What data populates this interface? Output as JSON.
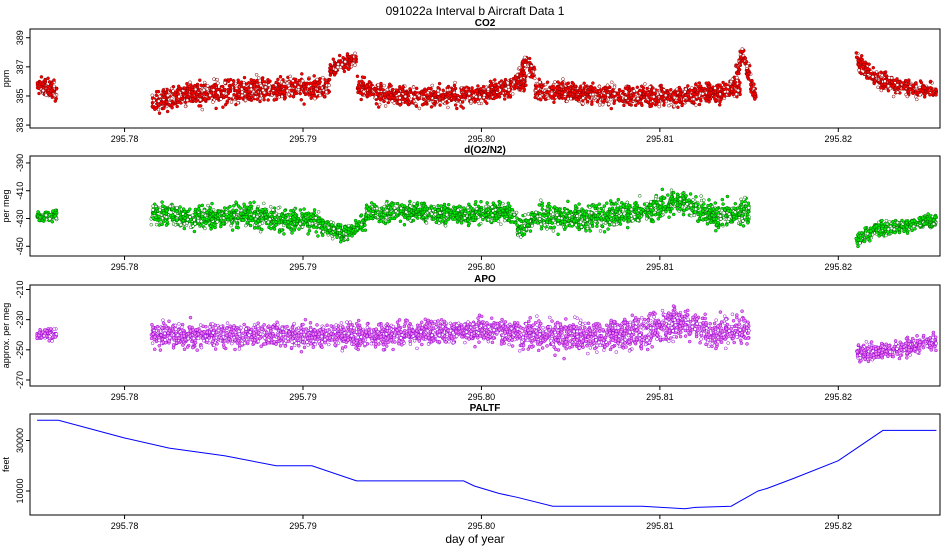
{
  "title": "091022a   Interval b Aircraft Data 1",
  "xlabel": "day of year",
  "chart_data": [
    {
      "type": "scatter",
      "title": "CO2",
      "ylabel": "ppm",
      "xlim": [
        295.7747,
        295.8257
      ],
      "ylim": [
        382.8,
        389.6
      ],
      "xticks": [
        295.78,
        295.79,
        295.8,
        295.81,
        295.82
      ],
      "xtick_labels": [
        "295.78",
        "295.79",
        "295.80",
        "295.81",
        "295.82"
      ],
      "yticks": [
        383,
        385,
        387,
        389
      ],
      "ytick_labels": [
        "383",
        "385",
        "387",
        "389"
      ],
      "color": "#ff0000",
      "edge_color": "#8b0000",
      "segments": [
        {
          "x0": 295.7751,
          "x1": 295.7762,
          "pts": [
            [
              295.7751,
              385.7
            ],
            [
              295.7762,
              385.3
            ]
          ],
          "spread": 0.6
        },
        {
          "x0": 295.7815,
          "x1": 295.7915,
          "pts": [
            [
              295.7815,
              384.6
            ],
            [
              295.783,
              385.0
            ],
            [
              295.785,
              385.3
            ],
            [
              295.788,
              385.4
            ],
            [
              295.79,
              385.6
            ],
            [
              295.7915,
              385.6
            ]
          ],
          "spread": 0.7
        },
        {
          "x0": 295.7915,
          "x1": 295.793,
          "pts": [
            [
              295.7915,
              386.7
            ],
            [
              295.7922,
              387.3
            ],
            [
              295.793,
              387.5
            ]
          ],
          "spread": 0.4
        },
        {
          "x0": 295.793,
          "x1": 295.8025,
          "pts": [
            [
              295.793,
              385.6
            ],
            [
              295.795,
              385.0
            ],
            [
              295.798,
              385.0
            ],
            [
              295.8,
              385.1
            ],
            [
              295.8015,
              385.6
            ],
            [
              295.8025,
              386.0
            ]
          ],
          "spread": 0.6
        },
        {
          "x0": 295.802,
          "x1": 295.803,
          "pts": [
            [
              295.802,
              386.0
            ],
            [
              295.8025,
              387.3
            ],
            [
              295.803,
              386.6
            ]
          ],
          "spread": 0.6
        },
        {
          "x0": 295.803,
          "x1": 295.8145,
          "pts": [
            [
              295.803,
              385.4
            ],
            [
              295.806,
              385.2
            ],
            [
              295.809,
              385.0
            ],
            [
              295.811,
              385.0
            ],
            [
              295.813,
              385.2
            ],
            [
              295.8145,
              385.6
            ]
          ],
          "spread": 0.6
        },
        {
          "x0": 295.8142,
          "x1": 295.8154,
          "pts": [
            [
              295.8142,
              386.0
            ],
            [
              295.8146,
              388.0
            ],
            [
              295.815,
              386.4
            ],
            [
              295.8154,
              385.0
            ]
          ],
          "spread": 0.6
        },
        {
          "x0": 295.821,
          "x1": 295.8255,
          "pts": [
            [
              295.821,
              387.6
            ],
            [
              295.822,
              386.2
            ],
            [
              295.8235,
              385.6
            ],
            [
              295.8255,
              385.3
            ]
          ],
          "spread": 0.5
        }
      ]
    },
    {
      "type": "scatter",
      "title": "d(O2/N2)",
      "ylabel": "per meg",
      "xlim": [
        295.7747,
        295.8257
      ],
      "ylim": [
        -457,
        -385
      ],
      "xticks": [
        295.78,
        295.79,
        295.8,
        295.81,
        295.82
      ],
      "xtick_labels": [
        "295.78",
        "295.79",
        "295.80",
        "295.81",
        "295.82"
      ],
      "yticks": [
        -390,
        -410,
        -430,
        -450
      ],
      "ytick_labels": [
        "-390",
        "-410",
        "-430",
        "-450"
      ],
      "color": "#00ee00",
      "edge_color": "#006400",
      "segments": [
        {
          "x0": 295.7751,
          "x1": 295.7762,
          "pts": [
            [
              295.7751,
              -428
            ],
            [
              295.7762,
              -428
            ]
          ],
          "spread": 3
        },
        {
          "x0": 295.7815,
          "x1": 295.791,
          "pts": [
            [
              295.7815,
              -425
            ],
            [
              295.784,
              -430
            ],
            [
              295.787,
              -428
            ],
            [
              295.79,
              -432
            ],
            [
              295.791,
              -432
            ]
          ],
          "spread": 7
        },
        {
          "x0": 295.791,
          "x1": 295.7935,
          "pts": [
            [
              295.791,
              -436
            ],
            [
              295.7922,
              -441
            ],
            [
              295.7935,
              -432
            ]
          ],
          "spread": 5
        },
        {
          "x0": 295.7935,
          "x1": 295.802,
          "pts": [
            [
              295.7935,
              -426
            ],
            [
              295.796,
              -425
            ],
            [
              295.799,
              -427
            ],
            [
              295.801,
              -425
            ],
            [
              295.802,
              -428
            ]
          ],
          "spread": 6
        },
        {
          "x0": 295.802,
          "x1": 295.803,
          "pts": [
            [
              295.802,
              -440
            ],
            [
              295.803,
              -430
            ]
          ],
          "spread": 6
        },
        {
          "x0": 295.803,
          "x1": 295.815,
          "pts": [
            [
              295.803,
              -428
            ],
            [
              295.806,
              -430
            ],
            [
              295.809,
              -425
            ],
            [
              295.811,
              -418
            ],
            [
              295.813,
              -428
            ],
            [
              295.815,
              -425
            ]
          ],
          "spread": 8
        },
        {
          "x0": 295.821,
          "x1": 295.8255,
          "pts": [
            [
              295.821,
              -445
            ],
            [
              295.822,
              -438
            ],
            [
              295.824,
              -435
            ],
            [
              295.8255,
              -432
            ]
          ],
          "spread": 4
        }
      ]
    },
    {
      "type": "scatter",
      "title": "APO",
      "ylabel": "approx. per meg",
      "xlim": [
        295.7747,
        295.8257
      ],
      "ylim": [
        -274,
        -207
      ],
      "xticks": [
        295.78,
        295.79,
        295.8,
        295.81,
        295.82
      ],
      "xtick_labels": [
        "295.78",
        "295.79",
        "295.80",
        "295.81",
        "295.82"
      ],
      "yticks": [
        -210,
        -230,
        -250,
        -270
      ],
      "ytick_labels": [
        "-210",
        "-230",
        "-250",
        "-270"
      ],
      "color": "#ee82ee",
      "edge_color": "#9400d3",
      "segments": [
        {
          "x0": 295.7751,
          "x1": 295.7762,
          "pts": [
            [
              295.7751,
              -240
            ],
            [
              295.7762,
              -240
            ]
          ],
          "spread": 3
        },
        {
          "x0": 295.7815,
          "x1": 295.802,
          "pts": [
            [
              295.7815,
              -240
            ],
            [
              295.786,
              -240
            ],
            [
              295.79,
              -241
            ],
            [
              295.795,
              -240
            ],
            [
              295.8,
              -237
            ],
            [
              295.802,
              -238
            ]
          ],
          "spread": 7
        },
        {
          "x0": 295.802,
          "x1": 295.815,
          "pts": [
            [
              295.802,
              -240
            ],
            [
              295.806,
              -242
            ],
            [
              295.809,
              -238
            ],
            [
              295.811,
              -232
            ],
            [
              295.813,
              -240
            ],
            [
              295.815,
              -235
            ]
          ],
          "spread": 9
        },
        {
          "x0": 295.821,
          "x1": 295.8255,
          "pts": [
            [
              295.821,
              -252
            ],
            [
              295.823,
              -250
            ],
            [
              295.8255,
              -244
            ]
          ],
          "spread": 5
        }
      ]
    },
    {
      "type": "line",
      "title": "PALTF",
      "ylabel": "feet",
      "xlim": [
        295.7747,
        295.8257
      ],
      "ylim": [
        500,
        40500
      ],
      "xticks": [
        295.78,
        295.79,
        295.8,
        295.81,
        295.82
      ],
      "xtick_labels": [
        "295.78",
        "295.79",
        "295.80",
        "295.81",
        "295.82"
      ],
      "yticks": [
        10000,
        30000
      ],
      "ytick_labels": [
        "10000",
        "30000"
      ],
      "color": "#0000ff",
      "x": [
        295.7751,
        295.7763,
        295.78,
        295.7825,
        295.7856,
        295.7885,
        295.7905,
        295.793,
        295.796,
        295.799,
        295.7996,
        295.801,
        295.802,
        295.804,
        295.8065,
        295.809,
        295.8114,
        295.812,
        295.814,
        295.8145,
        295.815,
        295.8155,
        295.816,
        295.8175,
        295.82,
        295.8225,
        295.8255
      ],
      "y": [
        38000,
        38000,
        31000,
        27000,
        24000,
        20000,
        20000,
        14000,
        14000,
        14000,
        12000,
        9000,
        7500,
        4000,
        4000,
        4000,
        3000,
        3500,
        4000,
        6000,
        8000,
        10000,
        11000,
        15000,
        22000,
        34000,
        34000
      ]
    }
  ]
}
